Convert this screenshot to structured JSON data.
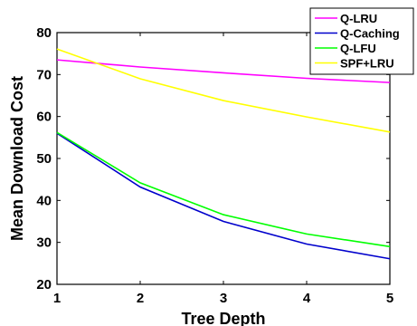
{
  "chart_data": {
    "type": "line",
    "xlabel": "Tree Depth",
    "ylabel": "Mean Download Cost",
    "x": [
      1,
      2,
      3,
      4,
      5
    ],
    "xlim": [
      1,
      5
    ],
    "ylim": [
      20,
      80
    ],
    "xticks": [
      "1",
      "2",
      "3",
      "4",
      "5"
    ],
    "yticks": [
      "20",
      "30",
      "40",
      "50",
      "60",
      "70",
      "80"
    ],
    "grid": false,
    "legend_position": "top-right",
    "series": [
      {
        "name": "Q-LRU",
        "color": "#ff00ff",
        "values": [
          73.5,
          71.8,
          70.4,
          69.1,
          68.1
        ]
      },
      {
        "name": "Q-Caching",
        "color": "#0000cc",
        "values": [
          56.0,
          43.2,
          35.0,
          29.6,
          26.1
        ]
      },
      {
        "name": "Q-LFU",
        "color": "#00ff00",
        "values": [
          56.2,
          44.2,
          36.6,
          32.0,
          29.0
        ]
      },
      {
        "name": "SPF+LRU",
        "color": "#ffff00",
        "values": [
          76.1,
          69.0,
          63.8,
          59.9,
          56.3
        ]
      }
    ]
  }
}
